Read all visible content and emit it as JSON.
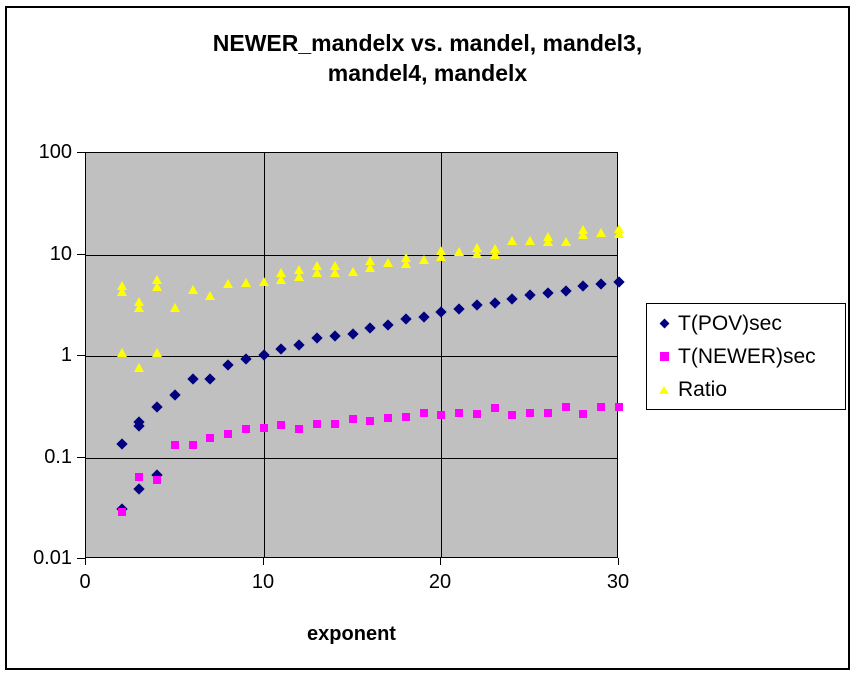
{
  "title": {
    "line1": "NEWER_mandelx vs. mandel, mandel3,",
    "line2": "mandel4, mandelx"
  },
  "colors": {
    "plot_background": "#c0c0c0",
    "grid": "#000000",
    "pov_series": "#000080",
    "newer_series": "#ff00ff",
    "ratio_series": "#ffff00",
    "text": "#000000",
    "chart_background": "#ffffff"
  },
  "legend": {
    "items": [
      {
        "label": "T(POV)sec",
        "marker": "diamond",
        "color": "#000080"
      },
      {
        "label": "T(NEWER)sec",
        "marker": "square",
        "color": "#ff00ff"
      },
      {
        "label": "Ratio",
        "marker": "triangle",
        "color": "#ffff00"
      }
    ]
  },
  "chart_data": {
    "type": "scatter",
    "title": "NEWER_mandelx vs. mandel, mandel3, mandel4, mandelx",
    "xlabel": "exponent",
    "ylabel": "",
    "x_axis": {
      "min": 0,
      "max": 30,
      "ticks": [
        0,
        10,
        20,
        30
      ],
      "scale": "linear"
    },
    "y_axis": {
      "min": 0.01,
      "max": 100,
      "ticks": [
        100,
        10,
        1,
        0.1,
        0.01
      ],
      "scale": "log"
    },
    "grid": true,
    "legend_position": "right",
    "series": [
      {
        "name": "T(POV)sec",
        "marker": "diamond",
        "color": "#000080",
        "points": [
          [
            2,
            0.135
          ],
          [
            2,
            0.031
          ],
          [
            3,
            0.225
          ],
          [
            3,
            0.205
          ],
          [
            3,
            0.049
          ],
          [
            4,
            0.315
          ],
          [
            4,
            0.067
          ],
          [
            5,
            0.41
          ],
          [
            6,
            0.59
          ],
          [
            7,
            0.59
          ],
          [
            8,
            0.81
          ],
          [
            9,
            0.93
          ],
          [
            10,
            1.02
          ],
          [
            11,
            1.17
          ],
          [
            12,
            1.28
          ],
          [
            13,
            1.5
          ],
          [
            14,
            1.57
          ],
          [
            15,
            1.65
          ],
          [
            16,
            1.9
          ],
          [
            17,
            2.0
          ],
          [
            18,
            2.3
          ],
          [
            19,
            2.4
          ],
          [
            20,
            2.72
          ],
          [
            21,
            2.9
          ],
          [
            22,
            3.18
          ],
          [
            23,
            3.34
          ],
          [
            24,
            3.64
          ],
          [
            25,
            4.0
          ],
          [
            26,
            4.17
          ],
          [
            27,
            4.37
          ],
          [
            28,
            4.9
          ],
          [
            29,
            5.1
          ],
          [
            30,
            5.35
          ]
        ]
      },
      {
        "name": "T(NEWER)sec",
        "marker": "square",
        "color": "#ff00ff",
        "points": [
          [
            2,
            0.029
          ],
          [
            3,
            0.064
          ],
          [
            4,
            0.06
          ],
          [
            5,
            0.132
          ],
          [
            6,
            0.132
          ],
          [
            7,
            0.155
          ],
          [
            8,
            0.17
          ],
          [
            9,
            0.19
          ],
          [
            10,
            0.195
          ],
          [
            11,
            0.21
          ],
          [
            12,
            0.19
          ],
          [
            13,
            0.213
          ],
          [
            14,
            0.213
          ],
          [
            15,
            0.24
          ],
          [
            16,
            0.228
          ],
          [
            17,
            0.245
          ],
          [
            18,
            0.25
          ],
          [
            19,
            0.275
          ],
          [
            20,
            0.26
          ],
          [
            21,
            0.274
          ],
          [
            22,
            0.27
          ],
          [
            23,
            0.31
          ],
          [
            24,
            0.262
          ],
          [
            25,
            0.274
          ],
          [
            26,
            0.273
          ],
          [
            27,
            0.315
          ],
          [
            28,
            0.27
          ],
          [
            29,
            0.315
          ],
          [
            30,
            0.315
          ]
        ]
      },
      {
        "name": "Ratio",
        "marker": "triangle",
        "color": "#ffff00",
        "points": [
          [
            2,
            4.9
          ],
          [
            2,
            4.3
          ],
          [
            2,
            1.06
          ],
          [
            3,
            3.4
          ],
          [
            3,
            2.95
          ],
          [
            3,
            0.76
          ],
          [
            4,
            5.6
          ],
          [
            4,
            4.8
          ],
          [
            4,
            1.06
          ],
          [
            5,
            3.0
          ],
          [
            6,
            4.5
          ],
          [
            7,
            3.9
          ],
          [
            8,
            5.1
          ],
          [
            9,
            5.2
          ],
          [
            10,
            5.3
          ],
          [
            11,
            6.5
          ],
          [
            11,
            5.6
          ],
          [
            12,
            7.0
          ],
          [
            12,
            6.0
          ],
          [
            13,
            7.7
          ],
          [
            13,
            6.6
          ],
          [
            14,
            7.7
          ],
          [
            14,
            6.6
          ],
          [
            15,
            6.8
          ],
          [
            16,
            8.6
          ],
          [
            16,
            7.4
          ],
          [
            17,
            8.2
          ],
          [
            18,
            9.3
          ],
          [
            18,
            8.1
          ],
          [
            19,
            8.8
          ],
          [
            20,
            10.8
          ],
          [
            20,
            9.4
          ],
          [
            21,
            10.5
          ],
          [
            22,
            11.6
          ],
          [
            22,
            10.2
          ],
          [
            23,
            11.4
          ],
          [
            23,
            10.0
          ],
          [
            24,
            13.7
          ],
          [
            25,
            13.7
          ],
          [
            26,
            14.8
          ],
          [
            26,
            13.3
          ],
          [
            27,
            13.4
          ],
          [
            28,
            17.5
          ],
          [
            28,
            15.5
          ],
          [
            29,
            16.4
          ],
          [
            30,
            17.8
          ],
          [
            30,
            15.8
          ]
        ]
      }
    ]
  }
}
